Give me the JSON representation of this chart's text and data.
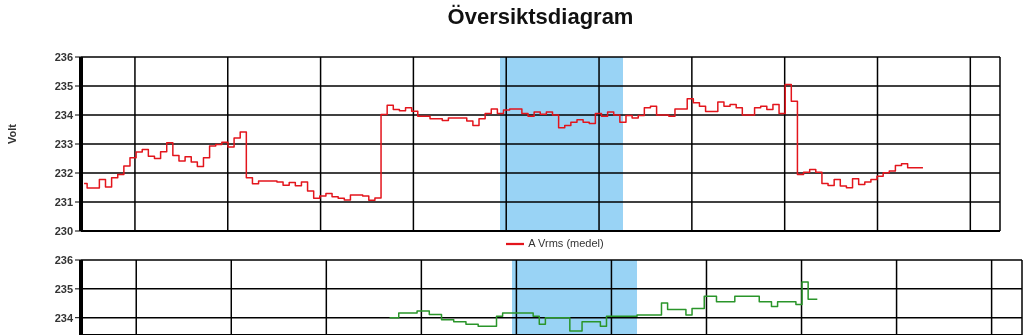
{
  "chart_data": [
    {
      "type": "step",
      "title": "Översiktsdiagram",
      "ylabel": "Volt",
      "legend": "bottom",
      "grid": true,
      "tick_labels": "y",
      "categories": [
        null,
        null,
        null,
        null,
        null,
        null,
        null,
        null,
        null,
        null,
        null,
        null,
        null,
        null,
        null,
        null,
        null,
        null,
        null,
        null,
        null,
        null,
        null,
        null,
        null,
        null,
        null,
        null,
        null,
        null,
        null,
        null,
        null,
        null,
        null,
        null,
        null,
        null,
        null,
        null,
        null,
        null,
        null,
        null,
        null,
        null,
        null,
        null,
        null,
        null,
        null,
        null,
        null,
        null,
        null,
        null,
        null,
        null,
        null,
        null,
        null,
        null,
        null,
        null,
        null,
        null,
        null,
        null,
        null,
        null,
        null,
        null,
        null,
        null,
        null,
        null,
        null,
        null,
        null,
        null,
        null,
        null,
        null,
        null,
        null,
        null,
        null,
        null,
        null,
        null,
        null,
        null,
        null,
        null,
        null,
        null,
        null,
        null,
        null,
        null,
        null,
        null,
        null,
        null,
        null,
        null,
        null,
        null,
        null,
        null,
        null,
        null,
        null,
        null,
        null,
        null,
        null,
        null,
        null,
        null,
        null,
        null,
        null,
        null,
        null,
        null,
        null,
        null,
        null,
        null,
        null,
        null,
        null,
        null,
        null,
        null,
        null,
        null
      ],
      "ylim": [
        230,
        236
      ],
      "yticks": [
        230,
        231,
        232,
        233,
        234,
        235,
        236
      ],
      "series": [
        {
          "name": "A Vrms (medel)",
          "color": "#e3151c",
          "values": [
            231.64,
            231.48,
            231.48,
            231.78,
            231.52,
            231.84,
            231.95,
            232.24,
            232.53,
            232.72,
            232.81,
            232.58,
            232.5,
            232.73,
            233.04,
            232.6,
            232.41,
            232.56,
            232.38,
            232.22,
            232.53,
            232.93,
            232.98,
            233.06,
            232.9,
            233.21,
            233.41,
            231.84,
            231.63,
            231.72,
            231.72,
            231.72,
            231.69,
            231.58,
            231.67,
            231.56,
            231.69,
            231.38,
            231.13,
            231.21,
            231.29,
            231.18,
            231.13,
            231.07,
            231.24,
            231.24,
            231.21,
            231.06,
            231.14,
            234.02,
            234.34,
            234.19,
            234.15,
            234.25,
            234.13,
            233.96,
            233.96,
            233.87,
            233.87,
            233.81,
            233.9,
            233.9,
            233.9,
            233.79,
            233.64,
            233.87,
            234.05,
            234.21,
            234.05,
            234.17,
            234.21,
            234.21,
            234.05,
            233.96,
            234.1,
            234.03,
            234.1,
            234.0,
            233.56,
            233.64,
            233.75,
            233.84,
            233.75,
            233.71,
            234.05,
            233.96,
            234.1,
            234.0,
            233.75,
            233.98,
            233.9,
            233.98,
            234.25,
            234.3,
            234.0,
            234.0,
            233.96,
            234.21,
            234.21,
            234.56,
            234.42,
            234.3,
            234.12,
            234.12,
            234.45,
            234.3,
            234.36,
            234.25,
            234.0,
            234.0,
            234.25,
            234.3,
            234.19,
            234.36,
            234.05,
            235.05,
            234.47,
            231.95,
            232.03,
            232.12,
            232.03,
            231.64,
            231.57,
            231.78,
            231.55,
            231.49,
            231.8,
            231.6,
            231.69,
            231.78,
            231.89,
            232.01,
            232.07,
            232.26,
            232.32,
            232.18,
            232.18,
            232.18
          ]
        }
      ]
    },
    {
      "type": "step",
      "grid": true,
      "tick_labels": "y",
      "categories": [
        null,
        null,
        null,
        null,
        null,
        null,
        null,
        null,
        null,
        null,
        null,
        null,
        null,
        null,
        null,
        null,
        null,
        null,
        null,
        null,
        null,
        null,
        null,
        null,
        null,
        null,
        null,
        null,
        null,
        null,
        null,
        null,
        null,
        null,
        null,
        null,
        null,
        null,
        null,
        null,
        null,
        null,
        null,
        null,
        null,
        null,
        null,
        null,
        null,
        null,
        null,
        null,
        null,
        null,
        null,
        null,
        null,
        null,
        null,
        null,
        null,
        null,
        null,
        null,
        null,
        null,
        null,
        null,
        null,
        null,
        null,
        null,
        null,
        null,
        null,
        null,
        null,
        null,
        null,
        null,
        null,
        null,
        null,
        null,
        null,
        null,
        null,
        null,
        null,
        null,
        null,
        null,
        null,
        null,
        null,
        null,
        null,
        null,
        null,
        null,
        null,
        null,
        null,
        null,
        null,
        null,
        null,
        null,
        null,
        null,
        null,
        null,
        null,
        null,
        null,
        null,
        null,
        null,
        null,
        null,
        null,
        null,
        null,
        null,
        null,
        null,
        null,
        null,
        null,
        null,
        null,
        null,
        null,
        null,
        null,
        null,
        null,
        null,
        null,
        null,
        null,
        null,
        null,
        null,
        null,
        null,
        null,
        null,
        null,
        null,
        null,
        null,
        null,
        null
      ],
      "ylim": [
        233.4,
        236
      ],
      "yticks": [
        234,
        235,
        236
      ],
      "series": [
        {
          "color": "#2a952a",
          "values": [
            null,
            null,
            null,
            null,
            null,
            null,
            null,
            null,
            null,
            null,
            null,
            null,
            null,
            null,
            null,
            null,
            null,
            null,
            null,
            null,
            null,
            null,
            null,
            null,
            null,
            null,
            null,
            null,
            null,
            null,
            null,
            null,
            null,
            null,
            null,
            null,
            null,
            null,
            null,
            null,
            null,
            null,
            null,
            null,
            null,
            null,
            null,
            null,
            null,
            null,
            234.0,
            234.0,
            234.16,
            234.16,
            234.16,
            234.23,
            234.23,
            234.11,
            234.11,
            233.93,
            233.93,
            233.86,
            233.86,
            233.77,
            233.77,
            233.7,
            233.7,
            233.7,
            234.05,
            234.16,
            234.16,
            234.16,
            234.16,
            234.16,
            234.05,
            233.77,
            234.0,
            234.0,
            234.0,
            234.0,
            233.54,
            233.54,
            233.86,
            233.86,
            233.86,
            233.7,
            234.05,
            234.05,
            234.05,
            234.05,
            234.05,
            234.09,
            234.09,
            234.09,
            234.09,
            234.51,
            234.28,
            234.28,
            234.28,
            234.09,
            234.32,
            234.32,
            234.74,
            234.74,
            234.55,
            234.55,
            234.55,
            234.74,
            234.74,
            234.74,
            234.74,
            234.55,
            234.55,
            234.39,
            234.55,
            234.55,
            234.55,
            234.46,
            235.24,
            234.64,
            234.64,
            null,
            null,
            null,
            null,
            null,
            null,
            null,
            null,
            null,
            null,
            null,
            null,
            null,
            null,
            null,
            null,
            null,
            null,
            null,
            null,
            null,
            null,
            null,
            null,
            null,
            null,
            null,
            null,
            null,
            null,
            null,
            null,
            null
          ]
        }
      ]
    }
  ]
}
